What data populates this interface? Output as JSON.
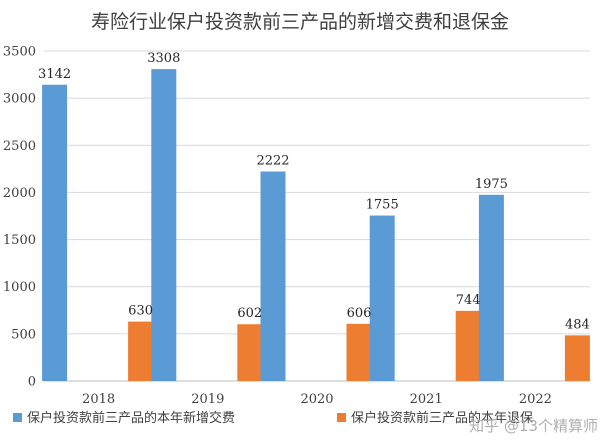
{
  "chart_data": {
    "type": "bar",
    "title": "寿险行业保户投资款前三产品的新增交费和退保金",
    "categories": [
      "2018",
      "2019",
      "2020",
      "2021",
      "2022"
    ],
    "series": [
      {
        "name": "保户投资款前三产品的本年新增交费",
        "values": [
          3142,
          3308,
          2222,
          1755,
          1975
        ],
        "color": "#5b9bd5"
      },
      {
        "name": "保户投资款前三产品的本年退保",
        "values": [
          630,
          602,
          606,
          744,
          484
        ],
        "color": "#ed7d31"
      }
    ],
    "ylim": [
      0,
      3500
    ],
    "yticks": [
      0,
      500,
      1000,
      1500,
      2000,
      2500,
      3000,
      3500
    ],
    "xlabel": "",
    "ylabel": "",
    "grid": true,
    "legend": "bottom"
  },
  "watermark": {
    "text": "知乎 @13个精算师"
  }
}
